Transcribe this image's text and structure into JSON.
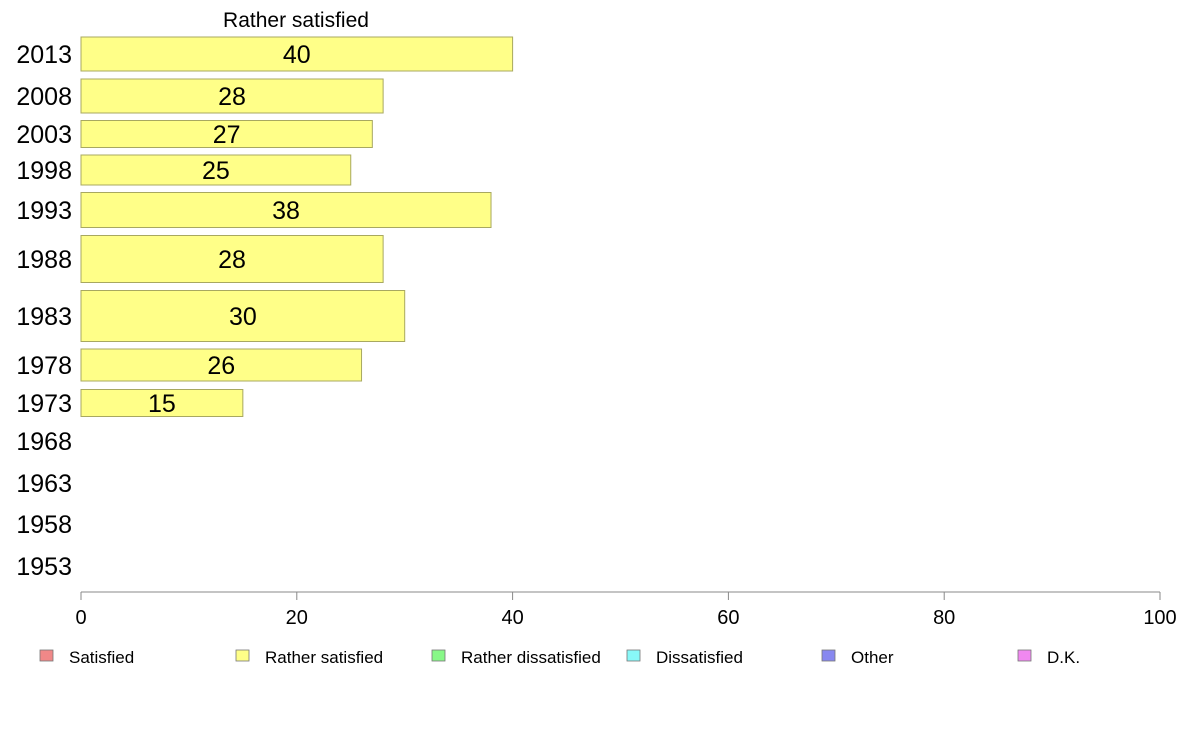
{
  "chart_data": {
    "type": "bar",
    "orientation": "horizontal",
    "title": "Rather satisfied",
    "categories": [
      "2013",
      "2008",
      "2003",
      "1998",
      "1993",
      "1988",
      "1983",
      "1978",
      "1973",
      "1968",
      "1963",
      "1958",
      "1953"
    ],
    "series": [
      {
        "name": "Rather satisfied",
        "color": "#ffff88",
        "values": [
          40,
          28,
          27,
          25,
          38,
          28,
          30,
          26,
          15,
          null,
          null,
          null,
          null
        ]
      }
    ],
    "xlim": [
      0,
      100
    ],
    "xticks": [
      0,
      20,
      40,
      60,
      80,
      100
    ],
    "grid": false,
    "legend_position": "bottom",
    "legend": [
      {
        "label": "Satisfied",
        "color": "#f08888"
      },
      {
        "label": "Rather satisfied",
        "color": "#ffff88"
      },
      {
        "label": "Rather dissatisfied",
        "color": "#88f888"
      },
      {
        "label": "Dissatisfied",
        "color": "#88f8f8"
      },
      {
        "label": "Other",
        "color": "#8888f0"
      },
      {
        "label": "D.K.",
        "color": "#f088f0"
      }
    ]
  }
}
